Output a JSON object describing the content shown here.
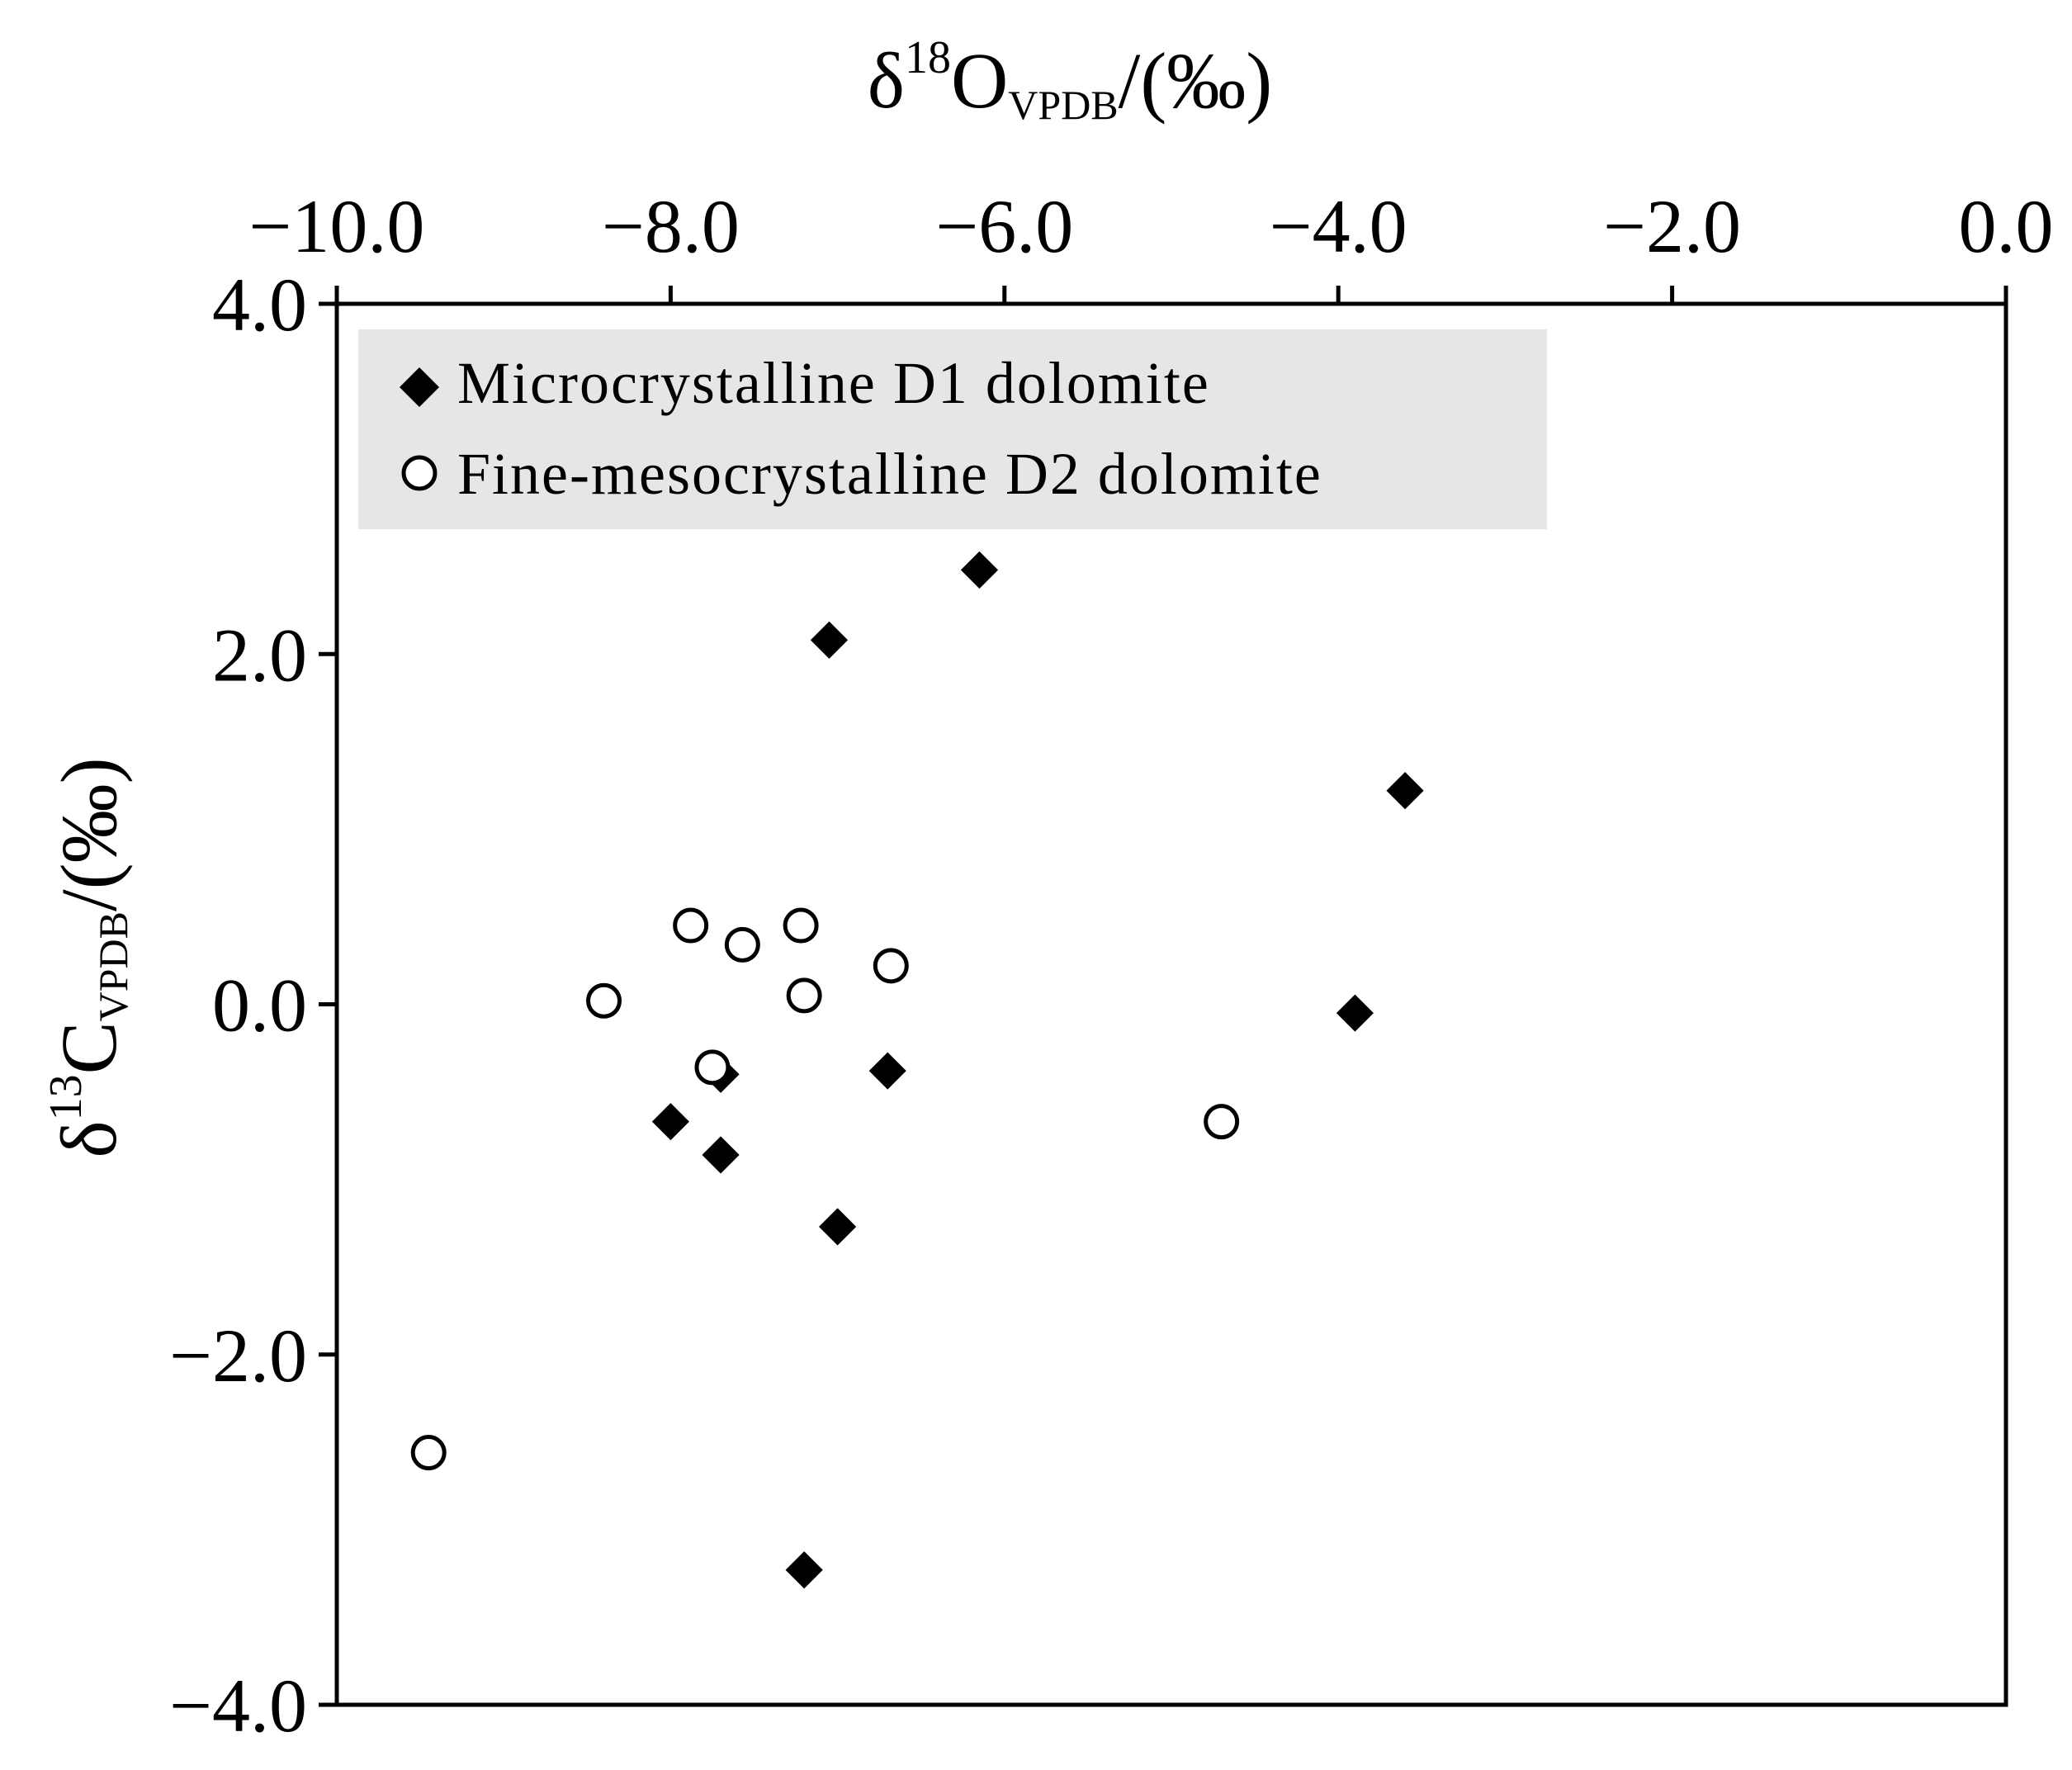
{
  "chart_data": {
    "type": "scatter",
    "title": "",
    "xlabel": {
      "symbol": "δ",
      "isotope": "18",
      "element": "O",
      "standard": "VPDB",
      "unit": "/(‰)"
    },
    "ylabel": {
      "symbol": "δ",
      "isotope": "13",
      "element": "C",
      "standard": "VPDB",
      "unit": "/(‰)"
    },
    "x_axis_position": "top",
    "xlim": [
      -10.0,
      0.0
    ],
    "ylim": [
      -4.0,
      4.0
    ],
    "xticks": [
      "−10.0",
      "−8.0",
      "−6.0",
      "−4.0",
      "−2.0",
      "0.0"
    ],
    "yticks": [
      "4.0",
      "2.0",
      "0.0",
      "−2.0",
      "−4.0"
    ],
    "grid": false,
    "legend_position": "top-left",
    "legend_background": "#e6e6e6",
    "series": [
      {
        "name": "Microcrystalline D1 dolomite",
        "marker": "filled-diamond",
        "color": "#000000",
        "points": [
          {
            "x": -6.15,
            "y": 2.48
          },
          {
            "x": -7.05,
            "y": 2.08
          },
          {
            "x": -3.6,
            "y": 1.22
          },
          {
            "x": -3.9,
            "y": -0.05
          },
          {
            "x": -6.7,
            "y": -0.38
          },
          {
            "x": -7.7,
            "y": -0.4
          },
          {
            "x": -8.0,
            "y": -0.67
          },
          {
            "x": -7.7,
            "y": -0.86
          },
          {
            "x": -7.0,
            "y": -1.27
          },
          {
            "x": -7.2,
            "y": -3.23
          }
        ]
      },
      {
        "name": "Fine-mesocrystalline D2 dolomite",
        "marker": "open-circle",
        "color": "#000000",
        "points": [
          {
            "x": -7.88,
            "y": 0.45
          },
          {
            "x": -7.57,
            "y": 0.34
          },
          {
            "x": -7.22,
            "y": 0.45
          },
          {
            "x": -6.68,
            "y": 0.22
          },
          {
            "x": -7.2,
            "y": 0.05
          },
          {
            "x": -8.4,
            "y": 0.02
          },
          {
            "x": -7.75,
            "y": -0.36
          },
          {
            "x": -4.7,
            "y": -0.67
          },
          {
            "x": -9.45,
            "y": -2.56
          }
        ]
      }
    ]
  }
}
